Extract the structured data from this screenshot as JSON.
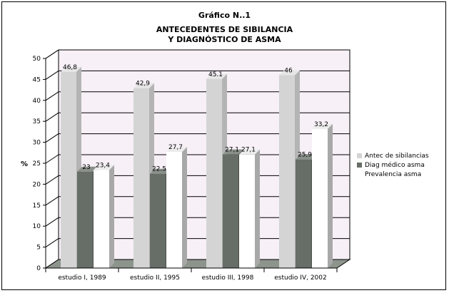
{
  "titles": {
    "line1": "Gráfico N..1",
    "line2": "ANTECEDENTES DE SIBILANCIA",
    "line3": "Y DIAGNÓSTICO DE ASMA"
  },
  "chart_data": {
    "type": "bar",
    "ylabel": "%",
    "xlabel": "",
    "ylim": [
      0,
      50
    ],
    "yticks": [
      "0",
      "5",
      "10",
      "15",
      "20",
      "25",
      "30",
      "35",
      "40",
      "45",
      "50"
    ],
    "categories": [
      "estudio I, 1989",
      "estudio II, 1995",
      "estudio III, 1998",
      "estudio IV, 2002"
    ],
    "series": [
      {
        "name": "Antec de sibilancias",
        "values": [
          46.8,
          42.9,
          45.1,
          46
        ],
        "labels": [
          "46,8",
          "42,9",
          "45.1",
          "46"
        ],
        "color": "#d4d4d4"
      },
      {
        "name": "Diag médico asma",
        "values": [
          23,
          22.5,
          27.1,
          25.9
        ],
        "labels": [
          "23",
          "22.5",
          "27,1",
          "25,9"
        ],
        "color": "#676d67"
      },
      {
        "name": "Prevalencia asma",
        "values": [
          23.4,
          27.7,
          27.1,
          33.2
        ],
        "labels": [
          "23,4",
          "27,7",
          "27,1",
          "33,2"
        ],
        "color": "#ffffff"
      }
    ],
    "grid": true,
    "legend_position": "right",
    "background": "#f7f0f7"
  }
}
